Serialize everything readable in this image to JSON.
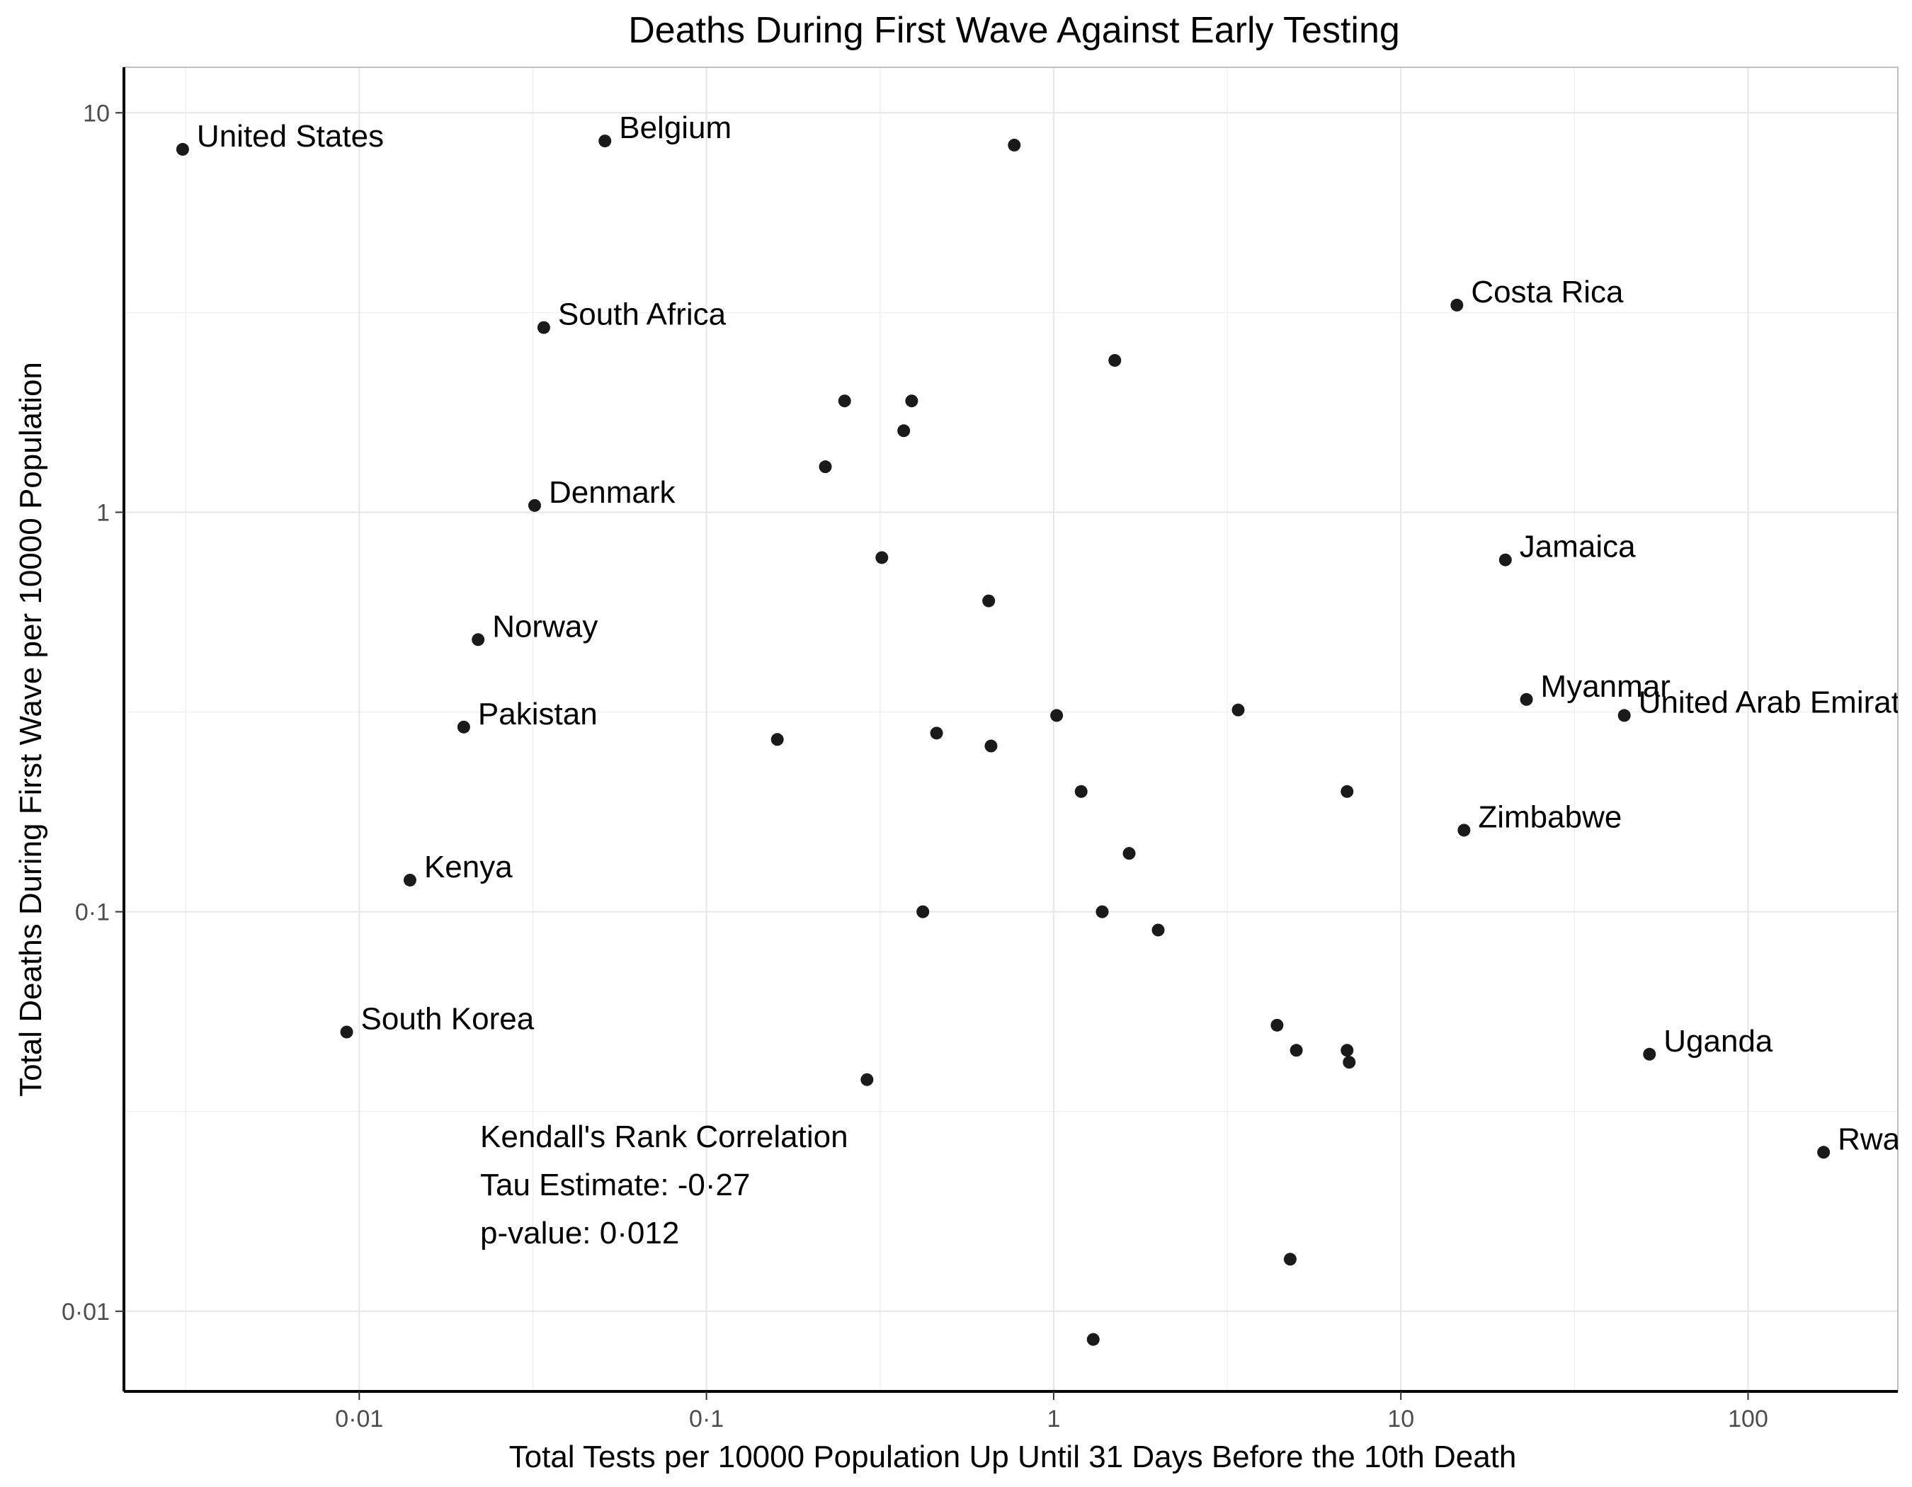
{
  "chart_data": {
    "type": "scatter",
    "title": "Deaths During First Wave Against Early Testing",
    "xlabel": "Total Tests per 10000 Population Up Until 31 Days Before the 10th Death",
    "ylabel": "Total Deaths During First Wave per 10000 Population",
    "x_scale": "log10",
    "y_scale": "log10",
    "xlim": [
      0.0021,
      270
    ],
    "ylim": [
      0.0063,
      13
    ],
    "x_ticks": [
      {
        "value": 0.01,
        "label": "0·01"
      },
      {
        "value": 0.1,
        "label": "0·1"
      },
      {
        "value": 1,
        "label": "1"
      },
      {
        "value": 10,
        "label": "10"
      },
      {
        "value": 100,
        "label": "100"
      }
    ],
    "y_ticks": [
      {
        "value": 0.01,
        "label": "0·01"
      },
      {
        "value": 0.1,
        "label": "0·1"
      },
      {
        "value": 1,
        "label": "1"
      },
      {
        "value": 10,
        "label": "10"
      }
    ],
    "grid": true,
    "point_color": "#1a1a1a",
    "points": [
      {
        "label": "United States",
        "x": 0.0031,
        "y": 8.1
      },
      {
        "label": "Belgium",
        "x": 0.051,
        "y": 8.5
      },
      {
        "label": "",
        "x": 0.77,
        "y": 8.3
      },
      {
        "label": "Costa Rica",
        "x": 14.5,
        "y": 3.3
      },
      {
        "label": "South Africa",
        "x": 0.034,
        "y": 2.9
      },
      {
        "label": "",
        "x": 1.5,
        "y": 2.4
      },
      {
        "label": "",
        "x": 0.25,
        "y": 1.9
      },
      {
        "label": "",
        "x": 0.39,
        "y": 1.9
      },
      {
        "label": "",
        "x": 0.37,
        "y": 1.6
      },
      {
        "label": "",
        "x": 0.22,
        "y": 1.3
      },
      {
        "label": "Denmark",
        "x": 0.032,
        "y": 1.04
      },
      {
        "label": "Jamaica",
        "x": 20,
        "y": 0.76
      },
      {
        "label": "",
        "x": 0.32,
        "y": 0.77
      },
      {
        "label": "",
        "x": 0.65,
        "y": 0.6
      },
      {
        "label": "Norway",
        "x": 0.022,
        "y": 0.48
      },
      {
        "label": "Myanmar",
        "x": 23,
        "y": 0.34
      },
      {
        "label": "United Arab Emirates",
        "x": 44,
        "y": 0.31
      },
      {
        "label": "Pakistan",
        "x": 0.02,
        "y": 0.29
      },
      {
        "label": "",
        "x": 1.02,
        "y": 0.31
      },
      {
        "label": "",
        "x": 3.4,
        "y": 0.32
      },
      {
        "label": "",
        "x": 0.16,
        "y": 0.27
      },
      {
        "label": "",
        "x": 0.46,
        "y": 0.28
      },
      {
        "label": "",
        "x": 0.66,
        "y": 0.26
      },
      {
        "label": "",
        "x": 1.2,
        "y": 0.2
      },
      {
        "label": "",
        "x": 7,
        "y": 0.2
      },
      {
        "label": "Zimbabwe",
        "x": 15.2,
        "y": 0.16
      },
      {
        "label": "",
        "x": 1.65,
        "y": 0.14
      },
      {
        "label": "Kenya",
        "x": 0.014,
        "y": 0.12
      },
      {
        "label": "",
        "x": 0.42,
        "y": 0.1
      },
      {
        "label": "",
        "x": 1.38,
        "y": 0.1
      },
      {
        "label": "",
        "x": 2,
        "y": 0.09
      },
      {
        "label": "South Korea",
        "x": 0.0092,
        "y": 0.05
      },
      {
        "label": "",
        "x": 4.4,
        "y": 0.052
      },
      {
        "label": "",
        "x": 5,
        "y": 0.045
      },
      {
        "label": "",
        "x": 7,
        "y": 0.045
      },
      {
        "label": "",
        "x": 7.1,
        "y": 0.042
      },
      {
        "label": "Uganda",
        "x": 52,
        "y": 0.044
      },
      {
        "label": "",
        "x": 0.29,
        "y": 0.038
      },
      {
        "label": "Rwanda",
        "x": 165,
        "y": 0.025
      },
      {
        "label": "",
        "x": 4.8,
        "y": 0.0135
      },
      {
        "label": "",
        "x": 1.3,
        "y": 0.0085
      }
    ],
    "annotation": [
      "Kendall's Rank Correlation",
      "Tau Estimate: -0·27",
      "p-value: 0·012"
    ]
  }
}
